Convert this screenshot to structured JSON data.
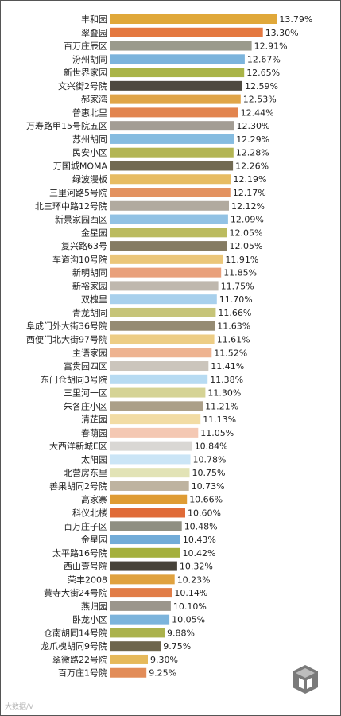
{
  "chart_data": {
    "type": "bar",
    "orientation": "horizontal",
    "title": "",
    "xlabel": "",
    "ylabel": "",
    "categories": [
      "丰和园",
      "翠叠园",
      "百万庄辰区",
      "汾州胡同",
      "新世界家园",
      "文兴街2号院",
      "郝家湾",
      "普惠北里",
      "万寿路甲15号院五区",
      "苏州胡同",
      "民安小区",
      "万国城MOMA",
      "绿波漫板",
      "三里河路5号院",
      "北三环中路12号院",
      "新景家园西区",
      "金星园",
      "复兴路63号",
      "车道沟10号院",
      "新明胡同",
      "新裕家园",
      "双槐里",
      "青龙胡同",
      "阜成门外大街36号院",
      "西便门北大街97号院",
      "主语家园",
      "富贵园四区",
      "东门仓胡同3号院",
      "三里河一区",
      "朱各庄小区",
      "清芷园",
      "春荫园",
      "大西洋新城E区",
      "太阳园",
      "北营房东里",
      "善果胡同2号院",
      "高家寨",
      "科仪北楼",
      "百万庄子区",
      "金星园",
      "太平路16号院",
      "西山壹号院",
      "荣丰2008",
      "黄寺大街24号院",
      "燕归园",
      "卧龙小区",
      "仓南胡同14号院",
      "龙爪槐胡同9号院",
      "翠微路22号院",
      "百万庄1号院"
    ],
    "values": [
      13.79,
      13.3,
      12.91,
      12.67,
      12.65,
      12.59,
      12.53,
      12.44,
      12.3,
      12.29,
      12.28,
      12.26,
      12.19,
      12.17,
      12.12,
      12.09,
      12.05,
      12.05,
      11.91,
      11.85,
      11.75,
      11.7,
      11.66,
      11.63,
      11.61,
      11.52,
      11.41,
      11.38,
      11.3,
      11.21,
      11.13,
      11.05,
      10.84,
      10.78,
      10.75,
      10.73,
      10.66,
      10.6,
      10.48,
      10.43,
      10.42,
      10.32,
      10.23,
      10.14,
      10.1,
      10.05,
      9.88,
      9.75,
      9.3,
      9.25
    ],
    "labels": [
      "13.79%",
      "13.30%",
      "12.91%",
      "12.67%",
      "12.65%",
      "12.59%",
      "12.53%",
      "12.44%",
      "12.30%",
      "12.29%",
      "12.28%",
      "12.26%",
      "12.19%",
      "12.17%",
      "12.12%",
      "12.09%",
      "12.05%",
      "12.05%",
      "11.91%",
      "11.85%",
      "11.75%",
      "11.70%",
      "11.66%",
      "11.63%",
      "11.61%",
      "11.52%",
      "11.41%",
      "11.38%",
      "11.30%",
      "11.21%",
      "11.13%",
      "11.05%",
      "10.84%",
      "10.78%",
      "10.75%",
      "10.73%",
      "10.66%",
      "10.60%",
      "10.48%",
      "10.43%",
      "10.42%",
      "10.32%",
      "10.23%",
      "10.14%",
      "10.10%",
      "10.05%",
      "9.88%",
      "9.75%",
      "9.30%",
      "9.25%"
    ],
    "colors": [
      "#e0a83a",
      "#e47840",
      "#9a9a8c",
      "#7cb4dc",
      "#a9b447",
      "#4e4a40",
      "#e0a548",
      "#e2844e",
      "#a39d94",
      "#86bce0",
      "#b3b553",
      "#726a52",
      "#e7bc63",
      "#e39260",
      "#b1aa9f",
      "#92c2e4",
      "#bbbb5e",
      "#857b62",
      "#ebc679",
      "#e9a07b",
      "#bfb8ae",
      "#a8d0ec",
      "#c6c478",
      "#958b73",
      "#edcd85",
      "#eeb390",
      "#cbc5bc",
      "#b7dbf2",
      "#d5d395",
      "#ab9f88",
      "#f2dca4",
      "#f4c8b3",
      "#d9d7d4",
      "#cbe5f6",
      "#e2e3b6",
      "#beb3a0",
      "#df9c34",
      "#e06b38",
      "#8f8f82",
      "#72acd8",
      "#a5b03d",
      "#474239",
      "#e0a23f",
      "#e17d47",
      "#9b968c",
      "#7cb4dc",
      "#abb24c",
      "#6e664d",
      "#e6b95a",
      "#e28c58"
    ],
    "xlim": [
      8,
      14
    ]
  },
  "watermark": {
    "text": "大数据/V"
  },
  "logo": {
    "name": "cube-logo-icon"
  }
}
